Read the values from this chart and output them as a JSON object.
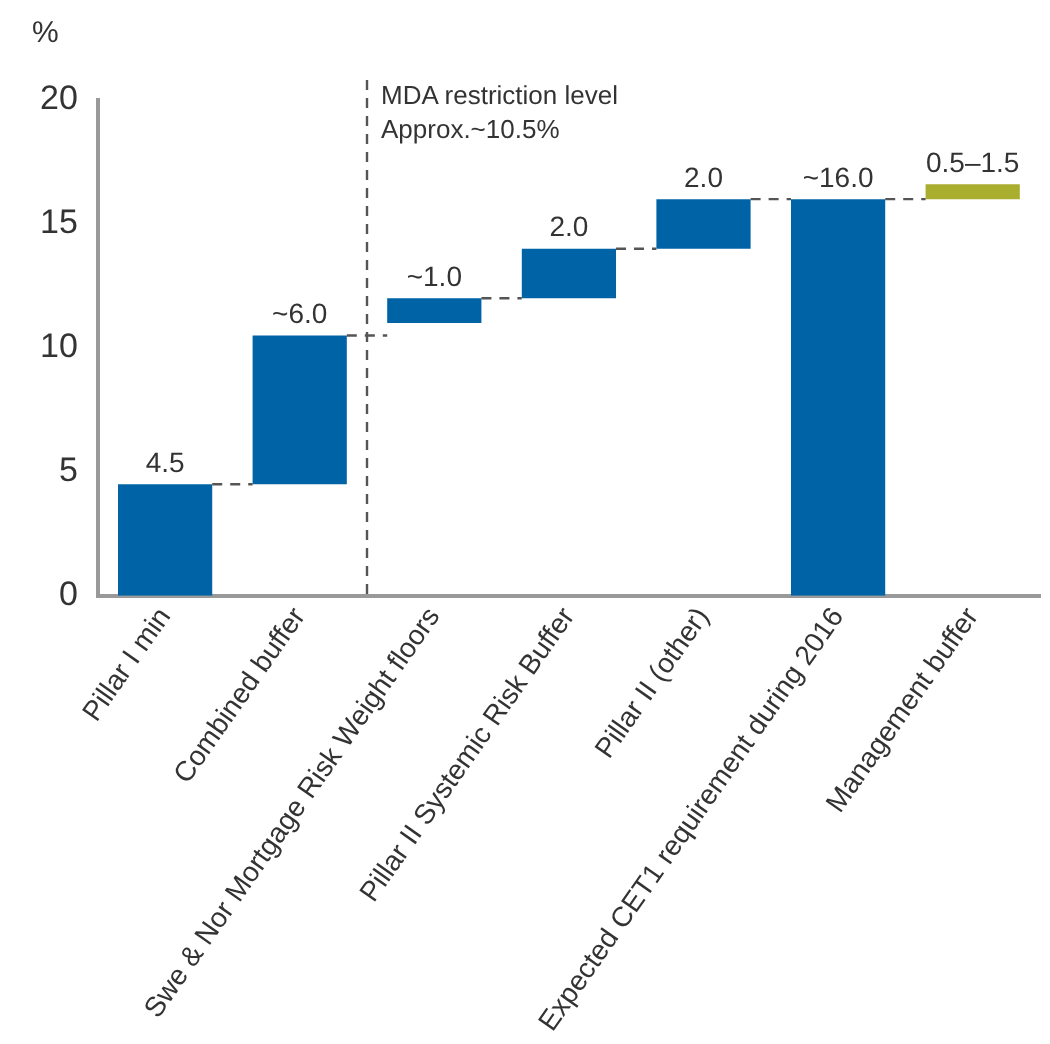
{
  "chart_data": {
    "type": "bar",
    "ylabel": "%",
    "categories": [
      "Pillar I min",
      "Combined buffer",
      "Swe & Nor Mortgage Risk Weight floors",
      "Pillar II Systemic Risk Buffer",
      "Pillar II (other)",
      "Expected CET1 requirement during 2016",
      "Management buffer"
    ],
    "values": [
      4.5,
      6.0,
      1.0,
      2.0,
      2.0,
      16.0,
      0.6
    ],
    "base": [
      0,
      4.5,
      11.0,
      12.0,
      14.0,
      0,
      16.0
    ],
    "colors": [
      "#0063a6",
      "#0063a6",
      "#0063a6",
      "#0063a6",
      "#0063a6",
      "#0063a6",
      "#a9ae2f"
    ],
    "value_labels": [
      "4.5",
      "~6.0",
      "~1.0",
      "2.0",
      "2.0",
      "~16.0",
      "0.5–1.5"
    ],
    "annotations": [
      "MDA restriction level\nApprox.~10.5%"
    ],
    "ylim": [
      0,
      20
    ],
    "yticks": [
      0,
      5,
      10,
      15,
      20
    ],
    "grid": false,
    "legend": false
  }
}
